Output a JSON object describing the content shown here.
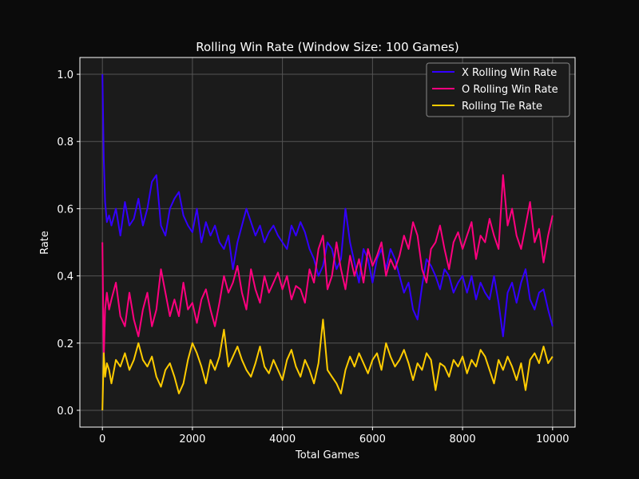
{
  "chart_data": {
    "type": "line",
    "title": "Rolling Win Rate (Window Size: 100 Games)",
    "xlabel": "Total Games",
    "ylabel": "Rate",
    "xlim": [
      -500,
      10500
    ],
    "ylim": [
      -0.05,
      1.05
    ],
    "xticks": [
      0,
      2000,
      4000,
      6000,
      8000,
      10000
    ],
    "yticks": [
      0.0,
      0.2,
      0.4,
      0.6,
      0.8,
      1.0
    ],
    "grid": true,
    "legend_position": "top-right",
    "background": "#1b1b1b",
    "series": [
      {
        "name": "X Rolling Win Rate",
        "color": "#3300ff",
        "x": [
          0,
          30,
          60,
          100,
          150,
          200,
          300,
          400,
          500,
          600,
          700,
          800,
          900,
          1000,
          1100,
          1200,
          1300,
          1400,
          1500,
          1600,
          1700,
          1800,
          1900,
          2000,
          2100,
          2200,
          2300,
          2400,
          2500,
          2600,
          2700,
          2800,
          2900,
          3000,
          3100,
          3200,
          3300,
          3400,
          3500,
          3600,
          3700,
          3800,
          3900,
          4000,
          4100,
          4200,
          4300,
          4400,
          4500,
          4600,
          4700,
          4800,
          4900,
          5000,
          5100,
          5200,
          5300,
          5400,
          5500,
          5600,
          5700,
          5800,
          5900,
          6000,
          6100,
          6200,
          6300,
          6400,
          6500,
          6600,
          6700,
          6800,
          6900,
          7000,
          7100,
          7200,
          7300,
          7400,
          7500,
          7600,
          7700,
          7800,
          7900,
          8000,
          8100,
          8200,
          8300,
          8400,
          8500,
          8600,
          8700,
          8800,
          8900,
          9000,
          9100,
          9200,
          9300,
          9400,
          9500,
          9600,
          9700,
          9800,
          9900,
          10000
        ],
        "y": [
          1.0,
          0.75,
          0.62,
          0.56,
          0.58,
          0.55,
          0.6,
          0.52,
          0.62,
          0.55,
          0.57,
          0.63,
          0.55,
          0.6,
          0.68,
          0.7,
          0.55,
          0.52,
          0.6,
          0.63,
          0.65,
          0.58,
          0.55,
          0.53,
          0.6,
          0.5,
          0.56,
          0.52,
          0.55,
          0.5,
          0.48,
          0.52,
          0.42,
          0.5,
          0.55,
          0.6,
          0.56,
          0.52,
          0.55,
          0.5,
          0.53,
          0.55,
          0.52,
          0.5,
          0.48,
          0.55,
          0.52,
          0.56,
          0.53,
          0.48,
          0.45,
          0.4,
          0.43,
          0.5,
          0.48,
          0.42,
          0.45,
          0.6,
          0.5,
          0.44,
          0.38,
          0.48,
          0.45,
          0.38,
          0.45,
          0.48,
          0.42,
          0.48,
          0.45,
          0.4,
          0.35,
          0.38,
          0.3,
          0.27,
          0.37,
          0.45,
          0.43,
          0.4,
          0.36,
          0.42,
          0.4,
          0.35,
          0.38,
          0.4,
          0.35,
          0.4,
          0.33,
          0.38,
          0.35,
          0.33,
          0.4,
          0.32,
          0.22,
          0.35,
          0.38,
          0.32,
          0.38,
          0.42,
          0.33,
          0.3,
          0.35,
          0.36,
          0.3,
          0.25
        ]
      },
      {
        "name": "O Rolling Win Rate",
        "color": "#ff007f",
        "x": [
          0,
          30,
          60,
          100,
          150,
          200,
          300,
          400,
          500,
          600,
          700,
          800,
          900,
          1000,
          1100,
          1200,
          1300,
          1400,
          1500,
          1600,
          1700,
          1800,
          1900,
          2000,
          2100,
          2200,
          2300,
          2400,
          2500,
          2600,
          2700,
          2800,
          2900,
          3000,
          3100,
          3200,
          3300,
          3400,
          3500,
          3600,
          3700,
          3800,
          3900,
          4000,
          4100,
          4200,
          4300,
          4400,
          4500,
          4600,
          4700,
          4800,
          4900,
          5000,
          5100,
          5200,
          5300,
          5400,
          5500,
          5600,
          5700,
          5800,
          5900,
          6000,
          6100,
          6200,
          6300,
          6400,
          6500,
          6600,
          6700,
          6800,
          6900,
          7000,
          7100,
          7200,
          7300,
          7400,
          7500,
          7600,
          7700,
          7800,
          7900,
          8000,
          8100,
          8200,
          8300,
          8400,
          8500,
          8600,
          8700,
          8800,
          8900,
          9000,
          9100,
          9200,
          9300,
          9400,
          9500,
          9600,
          9700,
          9800,
          9900,
          10000
        ],
        "y": [
          0.5,
          0.15,
          0.3,
          0.35,
          0.3,
          0.33,
          0.38,
          0.28,
          0.25,
          0.35,
          0.27,
          0.22,
          0.3,
          0.35,
          0.25,
          0.3,
          0.42,
          0.35,
          0.28,
          0.33,
          0.28,
          0.38,
          0.3,
          0.32,
          0.26,
          0.33,
          0.36,
          0.3,
          0.25,
          0.32,
          0.4,
          0.35,
          0.38,
          0.43,
          0.35,
          0.3,
          0.42,
          0.36,
          0.32,
          0.4,
          0.35,
          0.38,
          0.41,
          0.36,
          0.4,
          0.33,
          0.37,
          0.36,
          0.32,
          0.42,
          0.38,
          0.48,
          0.52,
          0.36,
          0.4,
          0.5,
          0.42,
          0.36,
          0.46,
          0.4,
          0.45,
          0.38,
          0.48,
          0.43,
          0.46,
          0.5,
          0.4,
          0.45,
          0.42,
          0.46,
          0.52,
          0.48,
          0.56,
          0.52,
          0.42,
          0.38,
          0.48,
          0.5,
          0.55,
          0.48,
          0.42,
          0.5,
          0.53,
          0.48,
          0.52,
          0.56,
          0.45,
          0.52,
          0.5,
          0.57,
          0.52,
          0.48,
          0.7,
          0.55,
          0.6,
          0.52,
          0.48,
          0.55,
          0.62,
          0.5,
          0.54,
          0.44,
          0.52,
          0.58
        ]
      },
      {
        "name": "Rolling Tie Rate",
        "color": "#ffcc00",
        "x": [
          0,
          30,
          60,
          100,
          150,
          200,
          300,
          400,
          500,
          600,
          700,
          800,
          900,
          1000,
          1100,
          1200,
          1300,
          1400,
          1500,
          1600,
          1700,
          1800,
          1900,
          2000,
          2100,
          2200,
          2300,
          2400,
          2500,
          2600,
          2700,
          2800,
          2900,
          3000,
          3100,
          3200,
          3300,
          3400,
          3500,
          3600,
          3700,
          3800,
          3900,
          4000,
          4100,
          4200,
          4300,
          4400,
          4500,
          4600,
          4700,
          4800,
          4900,
          5000,
          5100,
          5200,
          5300,
          5400,
          5500,
          5600,
          5700,
          5800,
          5900,
          6000,
          6100,
          6200,
          6300,
          6400,
          6500,
          6600,
          6700,
          6800,
          6900,
          7000,
          7100,
          7200,
          7300,
          7400,
          7500,
          7600,
          7700,
          7800,
          7900,
          8000,
          8100,
          8200,
          8300,
          8400,
          8500,
          8600,
          8700,
          8800,
          8900,
          9000,
          9100,
          9200,
          9300,
          9400,
          9500,
          9600,
          9700,
          9800,
          9900,
          10000
        ],
        "y": [
          0.0,
          0.17,
          0.1,
          0.14,
          0.12,
          0.08,
          0.15,
          0.13,
          0.17,
          0.12,
          0.15,
          0.2,
          0.15,
          0.13,
          0.16,
          0.1,
          0.07,
          0.12,
          0.14,
          0.1,
          0.05,
          0.08,
          0.15,
          0.2,
          0.17,
          0.13,
          0.08,
          0.15,
          0.12,
          0.16,
          0.24,
          0.13,
          0.16,
          0.19,
          0.15,
          0.12,
          0.1,
          0.14,
          0.19,
          0.13,
          0.11,
          0.15,
          0.12,
          0.09,
          0.15,
          0.18,
          0.13,
          0.1,
          0.15,
          0.12,
          0.08,
          0.14,
          0.27,
          0.12,
          0.1,
          0.08,
          0.05,
          0.12,
          0.16,
          0.13,
          0.17,
          0.14,
          0.11,
          0.15,
          0.17,
          0.12,
          0.2,
          0.16,
          0.13,
          0.15,
          0.18,
          0.14,
          0.09,
          0.14,
          0.12,
          0.17,
          0.15,
          0.06,
          0.14,
          0.13,
          0.1,
          0.15,
          0.13,
          0.16,
          0.11,
          0.15,
          0.13,
          0.18,
          0.16,
          0.12,
          0.08,
          0.15,
          0.12,
          0.16,
          0.13,
          0.09,
          0.14,
          0.06,
          0.15,
          0.17,
          0.14,
          0.19,
          0.14,
          0.16
        ]
      }
    ]
  }
}
